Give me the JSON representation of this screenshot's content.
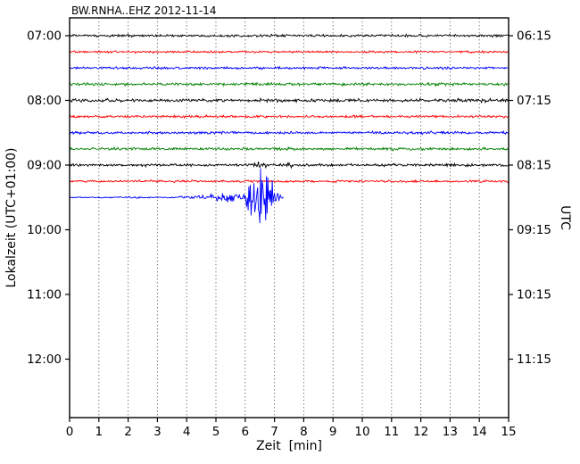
{
  "title": "BW.RNHA..EHZ 2012-11-14",
  "axes": {
    "x_label": "Zeit  [min]",
    "x_ticks": [
      "0",
      "1",
      "2",
      "3",
      "4",
      "5",
      "6",
      "7",
      "8",
      "9",
      "10",
      "11",
      "12",
      "13",
      "14",
      "15"
    ],
    "y_left_label": "Lokalzeit (UTC+01:00)",
    "y_left_ticks": [
      {
        "label": "07:00",
        "row": 0
      },
      {
        "label": "08:00",
        "row": 4
      },
      {
        "label": "09:00",
        "row": 8
      },
      {
        "label": "10:00",
        "row": 12
      },
      {
        "label": "11:00",
        "row": 16
      },
      {
        "label": "12:00",
        "row": 20
      }
    ],
    "y_right_label": "UTC",
    "y_right_ticks": [
      {
        "label": "06:15",
        "row": 0
      },
      {
        "label": "07:15",
        "row": 4
      },
      {
        "label": "08:15",
        "row": 8
      },
      {
        "label": "09:15",
        "row": 12
      },
      {
        "label": "10:15",
        "row": 16
      },
      {
        "label": "11:15",
        "row": 20
      }
    ]
  },
  "chart_data": {
    "type": "line",
    "subtype": "helicorder-dayplot",
    "title": "BW.RNHA..EHZ 2012-11-14",
    "xlabel": "Zeit [min]",
    "x_range": [
      0,
      15
    ],
    "minutes_per_row": 15,
    "grid": "vertical-dotted-every-minute",
    "trace_colors_cycle": [
      "#000000",
      "#ff0000",
      "#0000ff",
      "#008000"
    ],
    "traces": [
      {
        "start_local": "07:00",
        "color": "#000000",
        "amp": 1.7,
        "end_min": 15
      },
      {
        "start_local": "07:15",
        "color": "#ff0000",
        "amp": 1.4,
        "end_min": 15
      },
      {
        "start_local": "07:30",
        "color": "#0000ff",
        "amp": 1.7,
        "end_min": 15
      },
      {
        "start_local": "07:45",
        "color": "#008000",
        "amp": 1.8,
        "end_min": 15
      },
      {
        "start_local": "08:00",
        "color": "#000000",
        "amp": 2.2,
        "end_min": 15
      },
      {
        "start_local": "08:15",
        "color": "#ff0000",
        "amp": 1.6,
        "end_min": 15
      },
      {
        "start_local": "08:30",
        "color": "#0000ff",
        "amp": 1.8,
        "end_min": 15
      },
      {
        "start_local": "08:45",
        "color": "#008000",
        "amp": 1.8,
        "end_min": 15
      },
      {
        "start_local": "09:00",
        "color": "#000000",
        "amp": 1.8,
        "end_min": 15,
        "envelope": [
          [
            6.0,
            1
          ],
          [
            6.15,
            4.5
          ],
          [
            6.25,
            2.5
          ],
          [
            6.35,
            4.5
          ],
          [
            6.5,
            1.6
          ],
          [
            7.35,
            1
          ],
          [
            7.5,
            2.6
          ],
          [
            7.65,
            1
          ]
        ]
      },
      {
        "start_local": "09:15",
        "color": "#ff0000",
        "amp": 1.5,
        "end_min": 15
      },
      {
        "start_local": "09:30",
        "color": "#0000ff",
        "amp": 1.2,
        "end_min": 7.3,
        "envelope": [
          [
            0,
            0.8
          ],
          [
            3.5,
            0.8
          ],
          [
            4.2,
            1.6
          ],
          [
            4.8,
            2.6
          ],
          [
            5.2,
            4
          ],
          [
            5.5,
            6
          ],
          [
            5.8,
            5
          ],
          [
            6.0,
            9
          ],
          [
            6.15,
            26
          ],
          [
            6.3,
            40
          ],
          [
            6.4,
            20
          ],
          [
            6.5,
            44
          ],
          [
            6.6,
            30
          ],
          [
            6.7,
            40
          ],
          [
            6.8,
            16
          ],
          [
            6.9,
            26
          ],
          [
            7.0,
            11
          ],
          [
            7.1,
            6
          ],
          [
            7.2,
            4
          ],
          [
            7.3,
            3
          ]
        ]
      }
    ],
    "event_note_visible_in_pixels": {
      "trace_start_local": "09:30",
      "burst_between_min": [
        6.1,
        7.0
      ]
    }
  }
}
